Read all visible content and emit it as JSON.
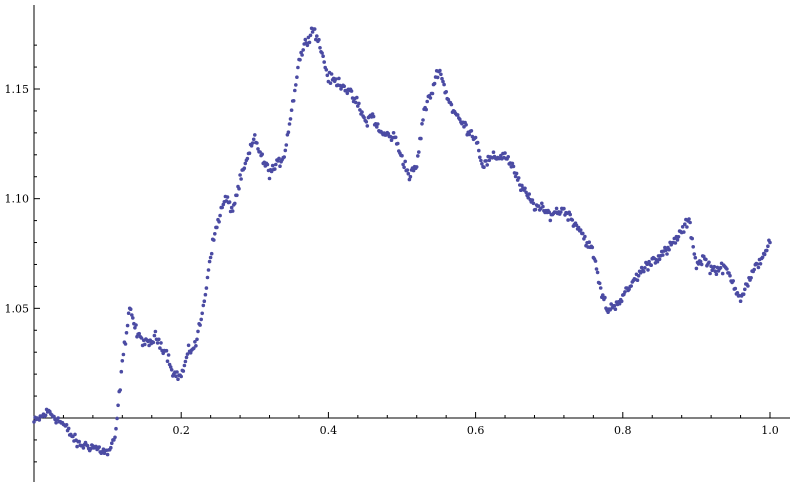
{
  "chart_data": {
    "type": "scatter",
    "title": "",
    "xlabel": "",
    "ylabel": "",
    "xlim": [
      0,
      1.0
    ],
    "ylim": [
      0.973,
      1.18
    ],
    "x_axis_crosses_y_at": 1.0,
    "x_ticks": [
      0.2,
      0.4,
      0.6,
      0.8,
      1.0
    ],
    "x_tick_labels": [
      "0.2",
      "0.4",
      "0.6",
      "0.8",
      "1.0"
    ],
    "y_ticks": [
      1.05,
      1.1,
      1.15
    ],
    "y_tick_labels": [
      "1.05",
      "1.10",
      "1.15"
    ],
    "grid": false,
    "marker_color": "#4b4ba3",
    "series": [
      {
        "x": [
          0,
          0.02,
          0.04,
          0.06,
          0.08,
          0.1,
          0.11,
          0.12,
          0.13,
          0.14,
          0.155,
          0.165,
          0.18,
          0.19,
          0.2,
          0.21,
          0.22,
          0.23,
          0.24,
          0.25,
          0.26,
          0.27,
          0.28,
          0.29,
          0.3,
          0.31,
          0.32,
          0.33,
          0.34,
          0.35,
          0.36,
          0.37,
          0.38,
          0.39,
          0.4,
          0.42,
          0.44,
          0.45,
          0.46,
          0.47,
          0.49,
          0.5,
          0.51,
          0.52,
          0.53,
          0.54,
          0.55,
          0.56,
          0.57,
          0.58,
          0.6,
          0.61,
          0.62,
          0.64,
          0.65,
          0.66,
          0.68,
          0.7,
          0.72,
          0.74,
          0.76,
          0.77,
          0.78,
          0.79,
          0.8,
          0.82,
          0.84,
          0.86,
          0.88,
          0.89,
          0.9,
          0.91,
          0.92,
          0.94,
          0.96,
          0.98,
          1.0
        ],
        "y": [
          0.998,
          1.003,
          0.997,
          0.988,
          0.987,
          0.984,
          0.99,
          1.025,
          1.051,
          1.038,
          1.033,
          1.037,
          1.03,
          1.02,
          1.019,
          1.03,
          1.034,
          1.05,
          1.075,
          1.09,
          1.1,
          1.095,
          1.108,
          1.118,
          1.128,
          1.118,
          1.112,
          1.115,
          1.12,
          1.14,
          1.163,
          1.172,
          1.178,
          1.168,
          1.155,
          1.152,
          1.143,
          1.135,
          1.138,
          1.13,
          1.128,
          1.119,
          1.11,
          1.115,
          1.14,
          1.148,
          1.16,
          1.148,
          1.14,
          1.135,
          1.128,
          1.115,
          1.118,
          1.12,
          1.115,
          1.106,
          1.097,
          1.093,
          1.095,
          1.087,
          1.075,
          1.058,
          1.049,
          1.052,
          1.055,
          1.065,
          1.072,
          1.076,
          1.085,
          1.09,
          1.07,
          1.073,
          1.068,
          1.068,
          1.055,
          1.068,
          1.08
        ]
      }
    ]
  }
}
